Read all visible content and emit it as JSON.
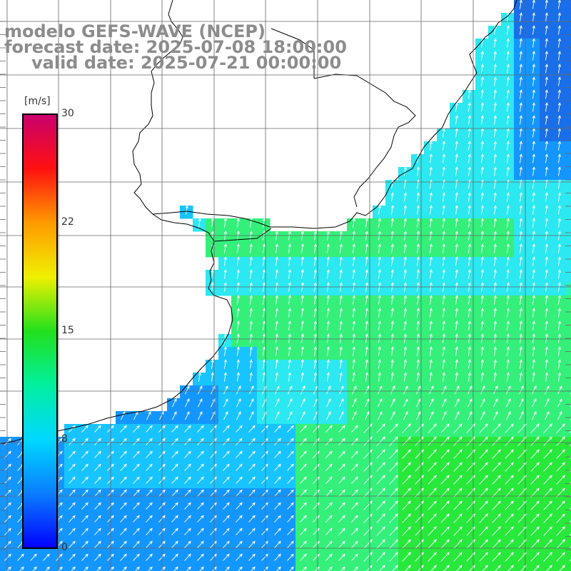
{
  "header": {
    "line1": "modelo GEFS-WAVE (NCEP)",
    "line2": "forecast date: 2025-07-08 18:00:00",
    "line3": "valid date: 2025-07-21 00:00:00"
  },
  "colorbar": {
    "unit": "[m/s]",
    "ticks": [
      "30",
      "22",
      "15",
      "8",
      "0"
    ],
    "colors": [
      "#0000ff",
      "#0a7dff",
      "#00d8ff",
      "#00f0a0",
      "#22e01c",
      "#f0f000",
      "#ff9a00",
      "#ff1010",
      "#c8006e"
    ]
  },
  "map": {
    "land_color": "#ffffff",
    "grid_color": "#666666",
    "arrow_color": "#ffffff",
    "palette": {
      "deep_blue": "#1a6fe8",
      "blue": "#1496ff",
      "sky": "#18c4ff",
      "cyan": "#2ce8f0",
      "aqua": "#30f2b8",
      "green": "#34f07a",
      "bright_green": "#28e83c"
    }
  }
}
